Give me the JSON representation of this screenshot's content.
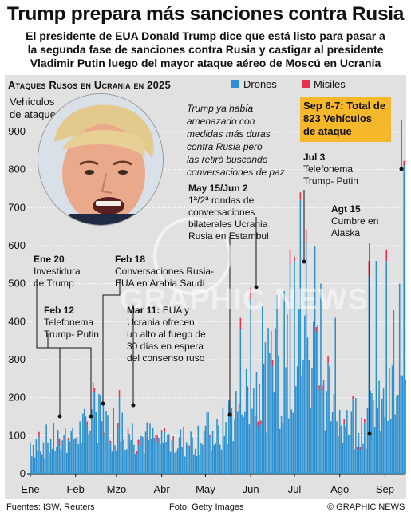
{
  "headline": "Trump prepara más sanciones contra Rusia",
  "subhead": [
    "El presidente de EUA Donald Trump dice que está listo para pasar a",
    "la segunda fase de sanciones contra Rusia y castigar al presidente",
    "Vladimir Putin luego del mayor ataque aéreo de Moscú en Ucrania"
  ],
  "panel_title": "Ataques Rusos en Ucrania en 2025",
  "legend": {
    "drones": "Drones",
    "missiles": "Misiles",
    "drones_color": "#2b90d0",
    "missiles_color": "#e8304c"
  },
  "quote": [
    "Trump ya había",
    "amenazado con",
    "medidas más duras",
    "contra Rusia pero",
    "las retiró buscando",
    "conversaciones de paz"
  ],
  "callout": {
    "lines": [
      "Sep 6-7: Total de",
      "823 Vehículos",
      "de ataque"
    ],
    "color": "#f5b82b"
  },
  "annotations": {
    "jan20": {
      "date": "Ene 20",
      "text": [
        "Investidura",
        "de Trump"
      ]
    },
    "feb12": {
      "date": "Feb 12",
      "text": [
        "Telefonema",
        "Trump- Putin"
      ]
    },
    "feb18": {
      "date": "Feb 18",
      "text": [
        "Conversaciones Rusia-",
        "EUA en Arabia Saudí"
      ]
    },
    "mar11": {
      "date": "Mar 11:",
      "text_first": " EUA y",
      "text": [
        "Ucrania ofrecen",
        "un alto al fuego de",
        "30 días en espera",
        "del consenso ruso"
      ]
    },
    "may15": {
      "date": "May 15/Jun 2",
      "text": [
        "1ª/2ª rondas de",
        "conversaciones",
        "bilaterales Ucrania",
        "Rusia en Estambul"
      ]
    },
    "jul3": {
      "date": "Jul 3",
      "text": [
        "Telefonema",
        "Trump- Putin"
      ]
    },
    "aug15": {
      "date": "Agt 15",
      "text": [
        "Cumbre en",
        "Alaska"
      ]
    }
  },
  "watermark": "GRAPHIC NEWS",
  "footer": {
    "sources": "Fuentes: ISW, Reuters",
    "photo": "Foto: Getty Images",
    "credit": "© GRAPHIC NEWS"
  },
  "chart_data": {
    "type": "bar",
    "stacked": true,
    "ylabel": "Vehículos de ataque",
    "ylim": [
      0,
      900
    ],
    "yticks": [
      0,
      100,
      200,
      300,
      400,
      500,
      600,
      700,
      800,
      900
    ],
    "xlim_day": [
      1,
      258
    ],
    "xticks": [
      {
        "label": "Ene",
        "day": 1
      },
      {
        "label": "Feb",
        "day": 32
      },
      {
        "label": "Mzo",
        "day": 60
      },
      {
        "label": "Abr",
        "day": 91
      },
      {
        "label": "May",
        "day": 121
      },
      {
        "label": "Jun",
        "day": 152
      },
      {
        "label": "Jul",
        "day": 182
      },
      {
        "label": "Ago",
        "day": 213
      },
      {
        "label": "Sep",
        "day": 244
      }
    ],
    "series": [
      {
        "name": "Drones",
        "color": "#2b90d0",
        "daily_base": [
          [
            1,
            100
          ],
          [
            20,
            110
          ],
          [
            30,
            120
          ],
          [
            40,
            150
          ],
          [
            47,
            190
          ],
          [
            55,
            160
          ],
          [
            65,
            150
          ],
          [
            75,
            120
          ],
          [
            90,
            110
          ],
          [
            110,
            105
          ],
          [
            120,
            140
          ],
          [
            130,
            120
          ],
          [
            140,
            200
          ],
          [
            150,
            260
          ],
          [
            160,
            300
          ],
          [
            170,
            320
          ],
          [
            180,
            350
          ],
          [
            190,
            400
          ],
          [
            200,
            360
          ],
          [
            210,
            200
          ],
          [
            220,
            180
          ],
          [
            230,
            170
          ],
          [
            240,
            200
          ],
          [
            258,
            260
          ]
        ],
        "peaks": [
          {
            "day": 30,
            "value": 120
          },
          {
            "day": 44,
            "value": 220
          },
          {
            "day": 48,
            "value": 210
          },
          {
            "day": 62,
            "value": 200
          },
          {
            "day": 145,
            "value": 380
          },
          {
            "day": 152,
            "value": 460
          },
          {
            "day": 160,
            "value": 440
          },
          {
            "day": 170,
            "value": 470
          },
          {
            "day": 175,
            "value": 480
          },
          {
            "day": 179,
            "value": 550
          },
          {
            "day": 182,
            "value": 560
          },
          {
            "day": 186,
            "value": 720
          },
          {
            "day": 190,
            "value": 610
          },
          {
            "day": 196,
            "value": 600
          },
          {
            "day": 200,
            "value": 500
          },
          {
            "day": 210,
            "value": 410
          },
          {
            "day": 233,
            "value": 520
          },
          {
            "day": 238,
            "value": 560
          },
          {
            "day": 245,
            "value": 560
          },
          {
            "day": 250,
            "value": 430
          },
          {
            "day": 254,
            "value": 500
          },
          {
            "day": 257,
            "value": 810
          }
        ]
      },
      {
        "name": "Misiles",
        "color": "#e8304c",
        "peaks": [
          {
            "day": 44,
            "value": 20
          },
          {
            "day": 62,
            "value": 20
          },
          {
            "day": 145,
            "value": 30
          },
          {
            "day": 152,
            "value": 30
          },
          {
            "day": 179,
            "value": 40
          },
          {
            "day": 186,
            "value": 20
          },
          {
            "day": 190,
            "value": 30
          },
          {
            "day": 233,
            "value": 40
          },
          {
            "day": 245,
            "value": 30
          },
          {
            "day": 257,
            "value": 13
          }
        ]
      }
    ]
  }
}
